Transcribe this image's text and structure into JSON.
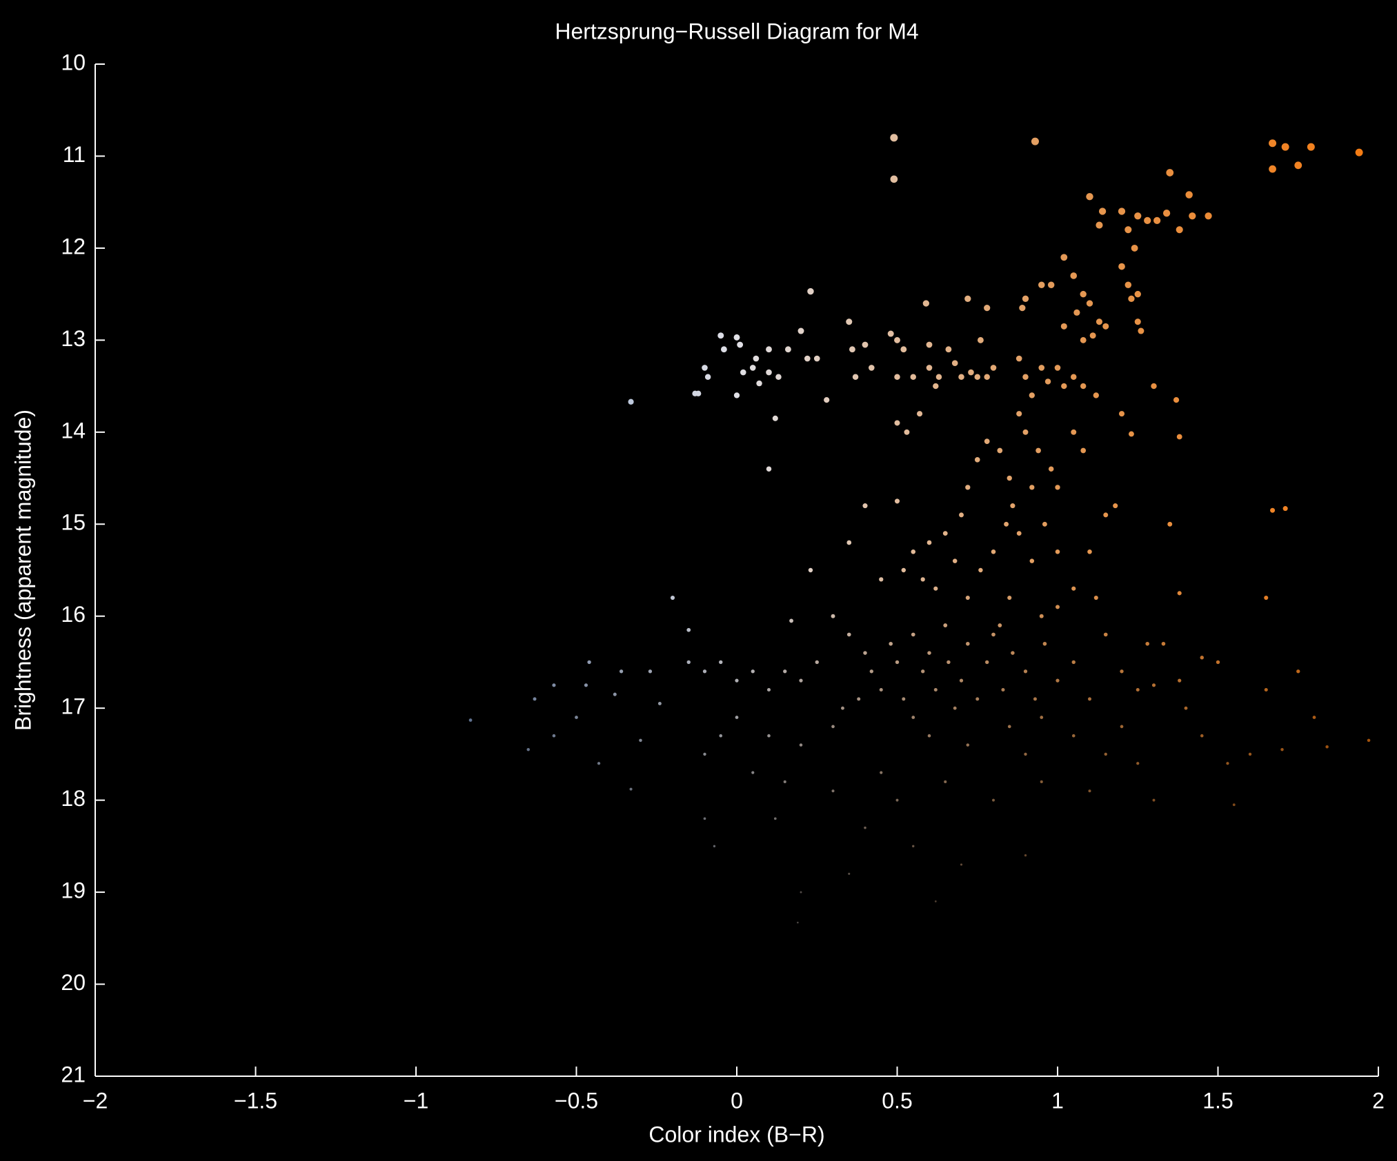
{
  "chart_data": {
    "type": "scatter",
    "title": "Hertzsprung−Russell Diagram for M4",
    "x_label": "Color index (B−R)",
    "y_label": "Brightness (apparent magnitude)",
    "xlim": [
      -2,
      2
    ],
    "ylim": [
      10,
      21
    ],
    "y_reversed": true,
    "grid": false,
    "colormap": [
      "#3c64a8",
      "#7796c8",
      "#e0e0e6",
      "#e39a58",
      "#f57a10"
    ],
    "xticks": [
      {
        "value": -2,
        "label": "−2"
      },
      {
        "value": -1.5,
        "label": "−1.5"
      },
      {
        "value": -1,
        "label": "−1"
      },
      {
        "value": -0.5,
        "label": "−0.5"
      },
      0,
      0.5,
      1,
      1.5,
      2
    ],
    "yticks": [
      10,
      11,
      12,
      13,
      14,
      15,
      16,
      17,
      18,
      19,
      20,
      21
    ],
    "x": [
      0.49,
      0.49,
      0.93,
      1.67,
      1.67,
      1.71,
      1.75,
      1.79,
      1.94,
      1.35,
      1.1,
      1.14,
      1.13,
      1.2,
      1.25,
      1.28,
      1.31,
      1.34,
      1.41,
      1.42,
      1.47,
      1.38,
      1.22,
      1.24,
      1.2,
      1.22,
      1.25,
      1.23,
      1.25,
      1.26,
      1.02,
      1.05,
      1.08,
      1.06,
      1.1,
      1.13,
      1.15,
      1.02,
      1.08,
      1.11,
      0.98,
      0.95,
      0.9,
      0.89,
      0.72,
      0.78,
      0.59,
      0.23,
      1.3,
      1.37,
      1.38,
      1.23,
      1.2,
      1.35,
      1.67,
      1.71,
      1.65,
      -0.05,
      0.0,
      0.01,
      -0.04,
      -0.1,
      -0.09,
      -0.13,
      -0.12,
      -0.33,
      0.06,
      0.05,
      0.02,
      0.1,
      0.07,
      0.1,
      0.13,
      0.16,
      0.2,
      0.22,
      0.25,
      0.28,
      0.0,
      0.12,
      0.1,
      0.35,
      0.36,
      0.4,
      0.37,
      0.42,
      0.48,
      0.5,
      0.52,
      0.5,
      0.55,
      0.5,
      0.53,
      0.6,
      0.6,
      0.63,
      0.66,
      0.68,
      0.7,
      0.73,
      0.75,
      0.76,
      0.78,
      0.8,
      0.62,
      0.57,
      0.88,
      0.9,
      0.92,
      0.95,
      0.97,
      1.0,
      1.02,
      1.05,
      1.08,
      1.12,
      0.88,
      0.9,
      0.94,
      0.98,
      1.0,
      0.92,
      0.86,
      0.82,
      0.85,
      0.78,
      0.75,
      0.72,
      0.7,
      0.65,
      0.6,
      0.55,
      0.5,
      0.4,
      0.35,
      0.45,
      0.52,
      0.58,
      0.62,
      0.68,
      0.72,
      0.76,
      0.8,
      0.84,
      0.88,
      0.92,
      0.96,
      1.0,
      1.05,
      1.1,
      1.15,
      1.18,
      1.08,
      1.05,
      1.12,
      0.85,
      0.82,
      0.95,
      1.0,
      0.3,
      0.35,
      0.4,
      0.42,
      0.45,
      0.48,
      0.5,
      0.52,
      0.55,
      0.58,
      0.6,
      0.62,
      0.65,
      0.66,
      0.7,
      0.72,
      0.75,
      0.78,
      0.8,
      0.83,
      0.86,
      0.9,
      0.93,
      0.96,
      1.0,
      1.05,
      1.1,
      1.15,
      1.2,
      1.25,
      1.28,
      0.25,
      0.2,
      0.15,
      0.1,
      0.05,
      0.0,
      -0.05,
      -0.1,
      -0.15,
      -0.15,
      -0.2,
      0.23,
      0.17,
      0.33,
      0.38,
      0.55,
      0.6,
      0.68,
      0.72,
      0.85,
      0.9,
      0.95,
      1.05,
      1.15,
      1.2,
      1.25,
      0.3,
      0.2,
      0.1,
      0.0,
      -0.05,
      -0.1,
      0.05,
      0.15,
      0.3,
      0.45,
      0.5,
      0.65,
      0.8,
      0.95,
      1.1,
      1.3,
      0.4,
      0.55,
      0.7,
      0.9,
      0.35,
      0.2,
      0.62,
      0.19,
      -0.07,
      -0.1,
      0.12,
      -0.83,
      -0.65,
      -0.63,
      -0.57,
      -0.57,
      -0.5,
      -0.46,
      -0.47,
      -0.43,
      -0.38,
      -0.36,
      -0.33,
      -0.27,
      -0.24,
      -0.3,
      1.38,
      1.45,
      1.5,
      1.53,
      1.6,
      1.65,
      1.7,
      1.75,
      1.8,
      1.84,
      1.97,
      1.55,
      1.38,
      1.33,
      1.4,
      1.3,
      1.45
    ],
    "values": [
      10.8,
      11.25,
      10.84,
      10.86,
      11.14,
      10.9,
      11.1,
      10.9,
      10.96,
      11.18,
      11.44,
      11.6,
      11.75,
      11.6,
      11.65,
      11.7,
      11.7,
      11.62,
      11.42,
      11.65,
      11.65,
      11.8,
      11.8,
      12.0,
      12.2,
      12.4,
      12.5,
      12.55,
      12.8,
      12.9,
      12.1,
      12.3,
      12.5,
      12.7,
      12.6,
      12.8,
      12.85,
      12.85,
      13.0,
      12.95,
      12.4,
      12.4,
      12.55,
      12.65,
      12.55,
      12.65,
      12.6,
      12.47,
      13.5,
      13.65,
      14.05,
      14.02,
      13.8,
      15.0,
      14.85,
      14.83,
      15.8,
      12.95,
      12.97,
      13.05,
      13.1,
      13.3,
      13.4,
      13.58,
      13.58,
      13.67,
      13.2,
      13.3,
      13.35,
      13.35,
      13.47,
      13.1,
      13.4,
      13.1,
      12.9,
      13.2,
      13.2,
      13.65,
      13.6,
      13.85,
      14.4,
      12.8,
      13.1,
      13.05,
      13.4,
      13.3,
      12.93,
      13.0,
      13.1,
      13.4,
      13.4,
      13.9,
      14.0,
      13.3,
      13.05,
      13.4,
      13.1,
      13.25,
      13.4,
      13.35,
      13.4,
      13.0,
      13.4,
      13.3,
      13.5,
      13.8,
      13.2,
      13.4,
      13.6,
      13.3,
      13.45,
      13.3,
      13.5,
      13.4,
      13.5,
      13.6,
      13.8,
      14.0,
      14.2,
      14.4,
      14.6,
      14.6,
      14.8,
      14.2,
      14.5,
      14.1,
      14.3,
      14.6,
      14.9,
      15.1,
      15.2,
      15.3,
      14.75,
      14.8,
      15.2,
      15.6,
      15.5,
      15.6,
      15.7,
      15.4,
      15.8,
      15.5,
      15.3,
      15.0,
      15.1,
      15.4,
      15.0,
      15.3,
      15.7,
      15.3,
      14.9,
      14.8,
      14.2,
      14.0,
      15.8,
      15.8,
      16.1,
      16.0,
      15.9,
      16.0,
      16.2,
      16.4,
      16.6,
      16.8,
      16.3,
      16.5,
      16.9,
      16.2,
      16.6,
      16.4,
      16.8,
      16.1,
      16.5,
      16.7,
      16.3,
      16.9,
      16.5,
      16.2,
      16.8,
      16.4,
      16.6,
      16.9,
      16.3,
      16.7,
      16.5,
      16.9,
      16.2,
      16.6,
      16.8,
      16.3,
      16.5,
      16.7,
      16.6,
      16.8,
      16.6,
      16.7,
      16.5,
      16.6,
      16.5,
      16.15,
      15.8,
      15.5,
      16.05,
      17.0,
      16.9,
      17.1,
      17.3,
      17.0,
      17.4,
      17.2,
      17.5,
      17.1,
      17.3,
      17.5,
      17.2,
      17.6,
      17.2,
      17.4,
      17.3,
      17.1,
      17.3,
      17.5,
      17.7,
      17.8,
      17.9,
      17.7,
      18.0,
      17.8,
      18.0,
      17.8,
      17.9,
      18.0,
      18.3,
      18.5,
      18.7,
      18.6,
      18.8,
      19.0,
      19.1,
      19.33,
      18.5,
      18.2,
      18.2,
      17.13,
      17.45,
      16.9,
      16.75,
      17.3,
      17.1,
      16.5,
      16.75,
      17.6,
      16.85,
      16.6,
      17.88,
      16.6,
      16.95,
      17.35,
      16.7,
      16.45,
      16.5,
      17.6,
      17.5,
      16.8,
      17.45,
      16.6,
      17.1,
      17.42,
      17.35,
      18.05,
      15.75,
      16.3,
      17.0,
      16.75,
      17.3
    ]
  }
}
